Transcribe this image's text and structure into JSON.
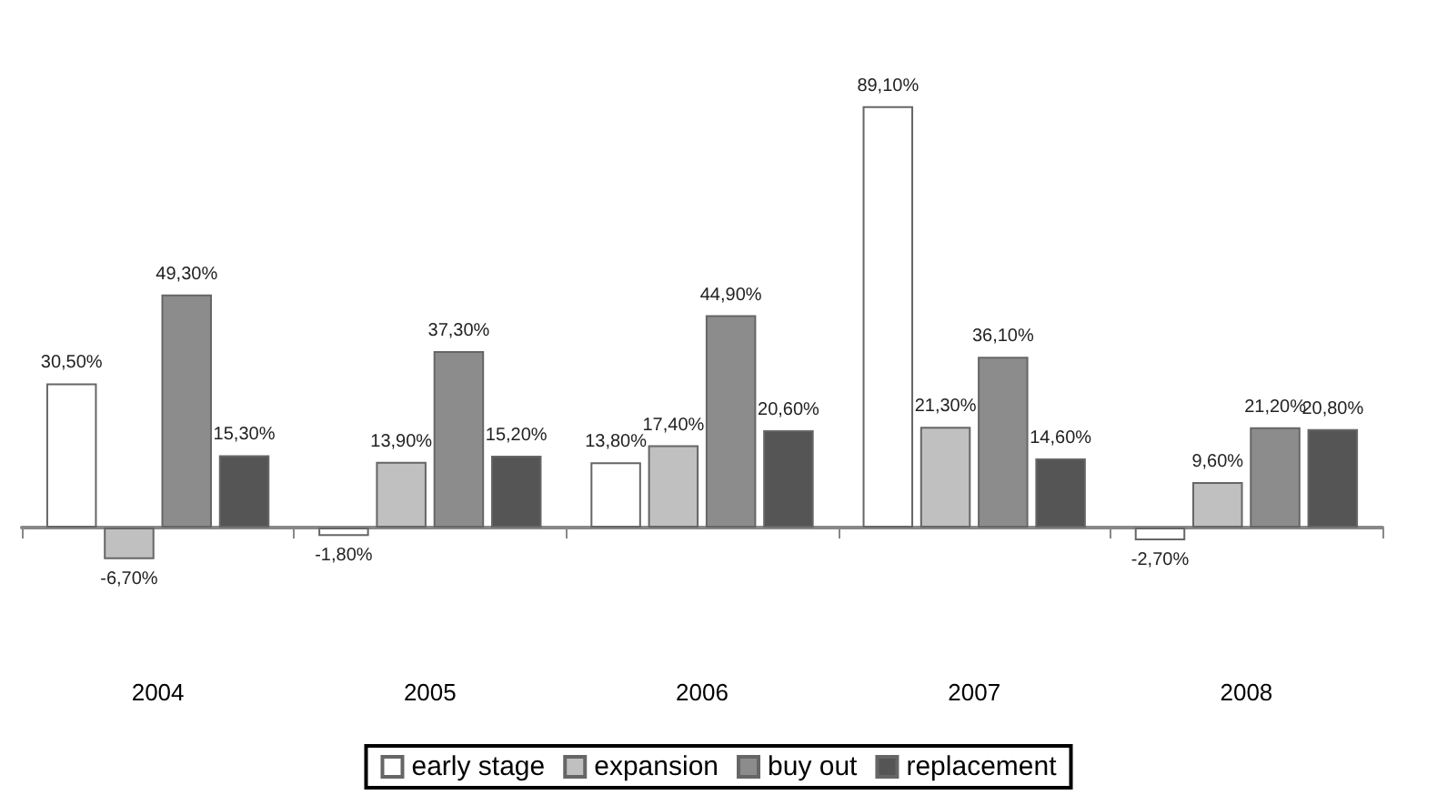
{
  "chart_data": {
    "type": "bar",
    "categories": [
      "2004",
      "2005",
      "2006",
      "2007",
      "2008"
    ],
    "series": [
      {
        "name": "early stage",
        "color": "#ffffff",
        "values": [
          30.5,
          -1.8,
          13.8,
          89.1,
          -2.7
        ],
        "value_labels": [
          "30,50%",
          "-1,80%",
          "13,80%",
          "89,10%",
          "-2,70%"
        ]
      },
      {
        "name": "expansion",
        "color": "#c0c0c0",
        "values": [
          -6.7,
          13.9,
          17.4,
          21.3,
          9.6
        ],
        "value_labels": [
          "-6,70%",
          "13,90%",
          "17,40%",
          "21,30%",
          "9,60%"
        ]
      },
      {
        "name": "buy out",
        "color": "#8c8c8c",
        "values": [
          49.3,
          37.3,
          44.9,
          36.1,
          21.2
        ],
        "value_labels": [
          "49,30%",
          "37,30%",
          "44,90%",
          "36,10%",
          "21,20%"
        ]
      },
      {
        "name": "replacement",
        "color": "#555555",
        "values": [
          15.3,
          15.2,
          20.6,
          14.6,
          20.8
        ],
        "value_labels": [
          "15,30%",
          "15,20%",
          "20,60%",
          "14,60%",
          "20,80%"
        ]
      }
    ],
    "legend": "bottom",
    "grid": false
  }
}
